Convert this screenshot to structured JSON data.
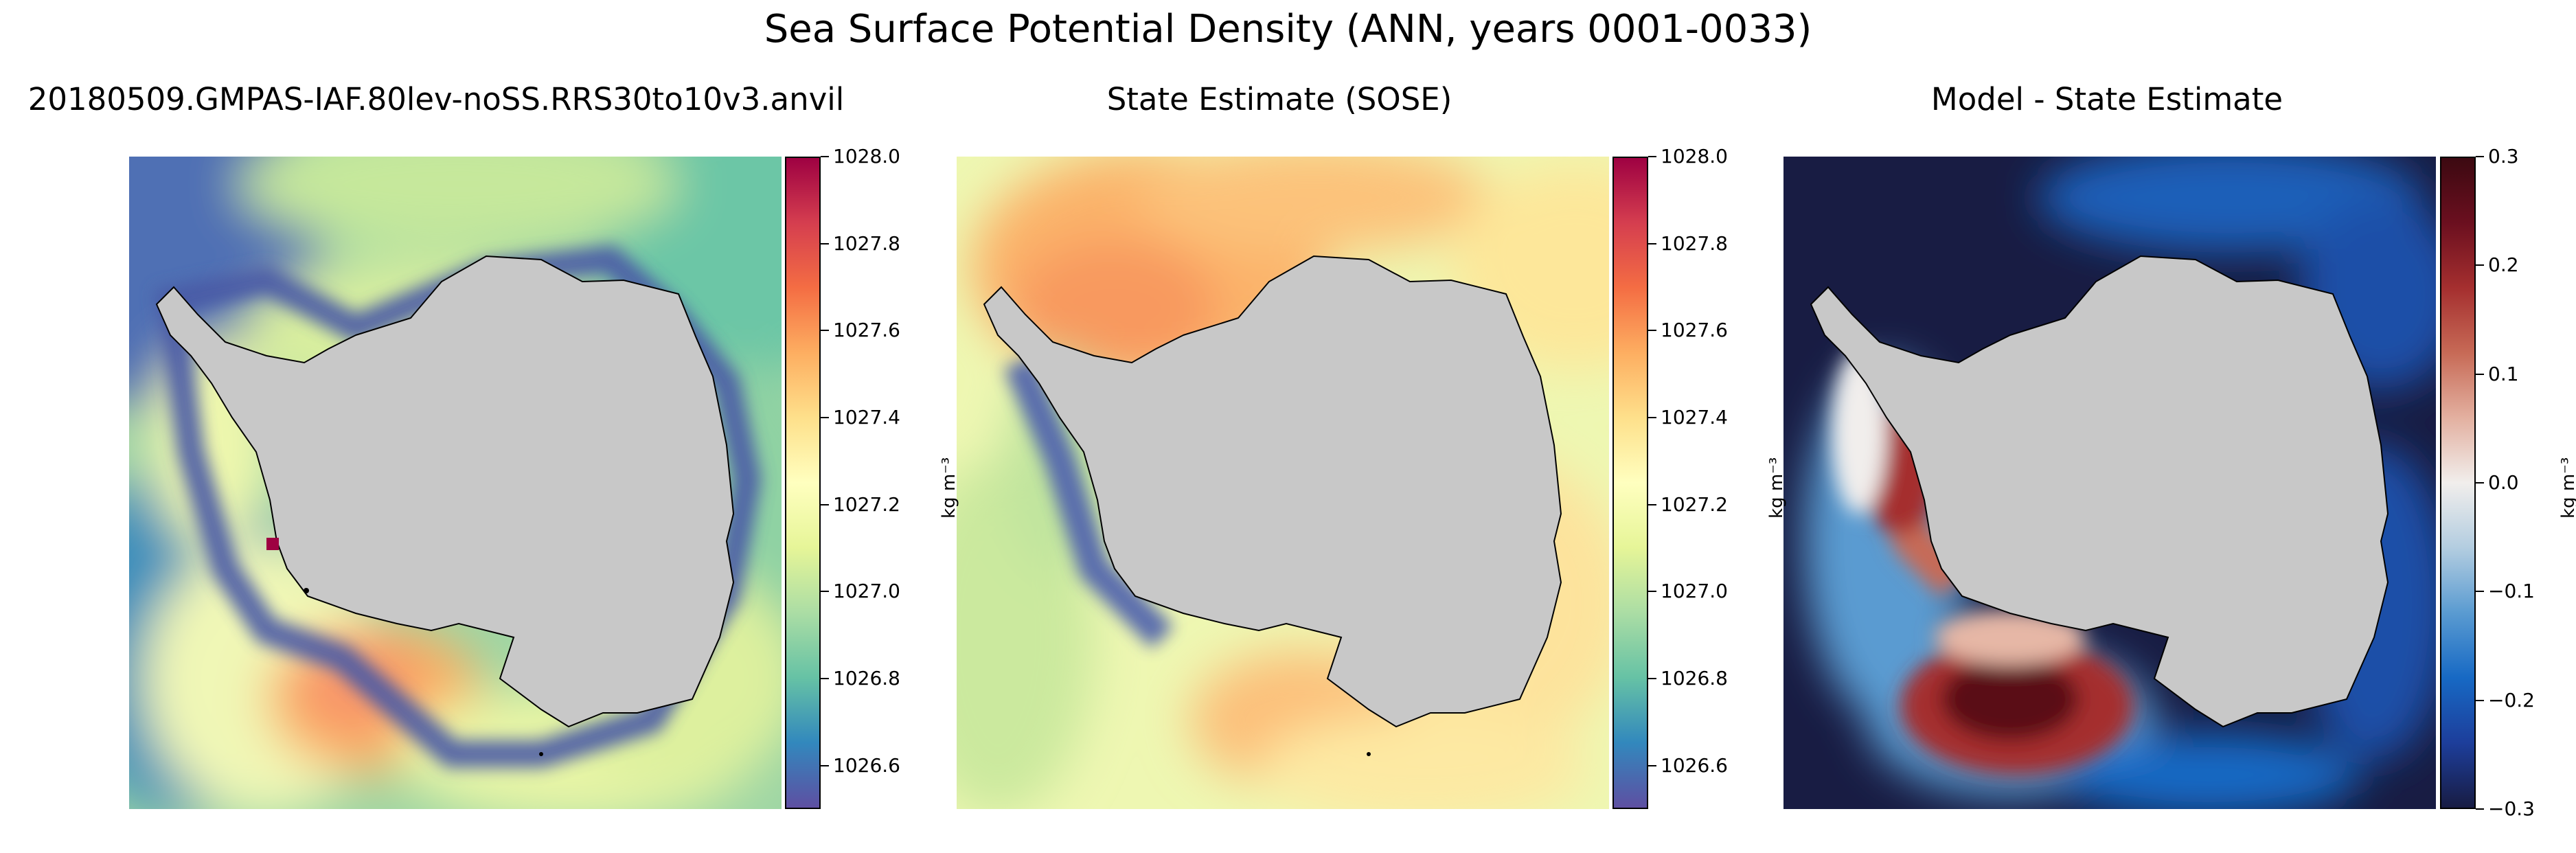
{
  "figure": {
    "title": "Sea Surface Potential Density (ANN, years 0001-0033)"
  },
  "panels": [
    {
      "id": "model",
      "title": "20180509.GMPAS-IAF.80lev-noSS.RRS30to10v3.anvil",
      "colormap": "Spectral_r",
      "unit": "kg m⁻³",
      "range": [
        1026.5,
        1028.0
      ],
      "ticks": [
        "1028.0",
        "1027.8",
        "1027.6",
        "1027.4",
        "1027.2",
        "1027.0",
        "1026.8",
        "1026.6"
      ],
      "tick_values": [
        1028.0,
        1027.8,
        1027.6,
        1027.4,
        1027.2,
        1027.0,
        1026.8,
        1026.6
      ],
      "colors": [
        "#5e4fa2",
        "#3288bd",
        "#66c2a5",
        "#abdda4",
        "#e6f598",
        "#ffffbf",
        "#fee08b",
        "#fdae61",
        "#f46d43",
        "#d53e4f",
        "#9e0142"
      ]
    },
    {
      "id": "sose",
      "title": "State Estimate (SOSE)",
      "colormap": "Spectral_r",
      "unit": "kg m⁻³",
      "range": [
        1026.5,
        1028.0
      ],
      "ticks": [
        "1028.0",
        "1027.8",
        "1027.6",
        "1027.4",
        "1027.2",
        "1027.0",
        "1026.8",
        "1026.6"
      ],
      "tick_values": [
        1028.0,
        1027.8,
        1027.6,
        1027.4,
        1027.2,
        1027.0,
        1026.8,
        1026.6
      ],
      "colors": [
        "#5e4fa2",
        "#3288bd",
        "#66c2a5",
        "#abdda4",
        "#e6f598",
        "#ffffbf",
        "#fee08b",
        "#fdae61",
        "#f46d43",
        "#d53e4f",
        "#9e0142"
      ]
    },
    {
      "id": "diff",
      "title": "Model - State Estimate",
      "colormap": "balance",
      "unit": "kg m⁻³",
      "range": [
        -0.3,
        0.3
      ],
      "ticks": [
        "0.3",
        "0.2",
        "0.1",
        "0.0",
        "−0.1",
        "−0.2",
        "−0.3"
      ],
      "tick_values": [
        0.3,
        0.2,
        0.1,
        0.0,
        -0.1,
        -0.2,
        -0.3
      ],
      "colors": [
        "#181c43",
        "#1d3e9b",
        "#1769c4",
        "#5a9bd1",
        "#b3cde0",
        "#f1eeec",
        "#e3b0a0",
        "#c76a56",
        "#a52f2f",
        "#6b0f1f",
        "#3c0911"
      ]
    }
  ],
  "land_color": "#c8c8c8"
}
